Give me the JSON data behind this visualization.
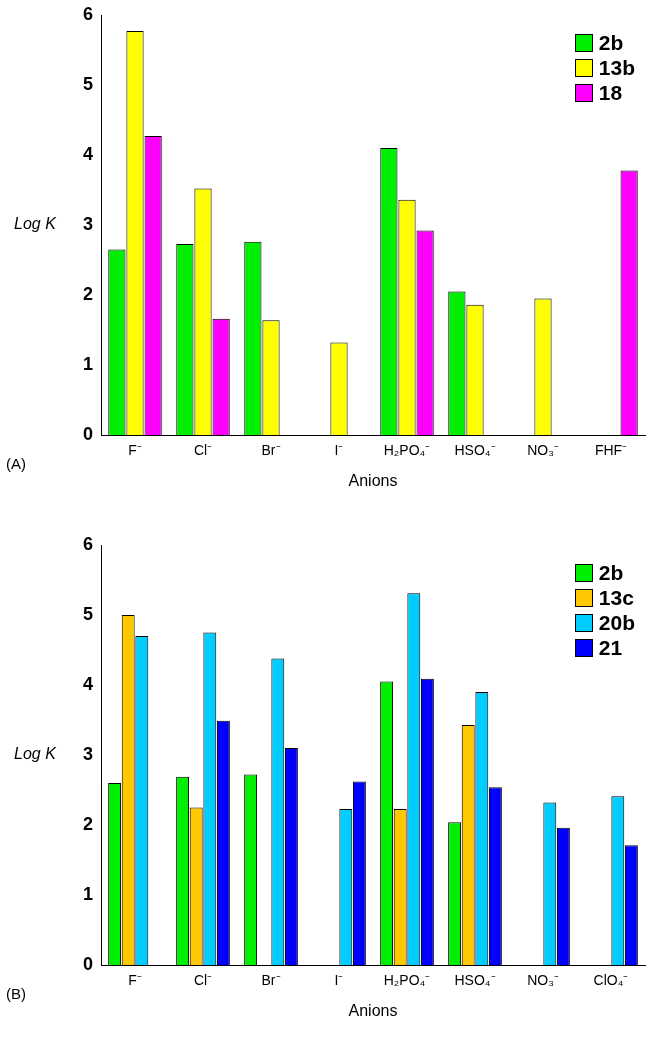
{
  "chart_data": [
    {
      "type": "bar",
      "xlabel": "Anions",
      "ylabel": "Log K",
      "categories": [
        "F⁻",
        "Cl⁻",
        "Br⁻",
        "I⁻",
        "H₂PO₄⁻",
        "HSO₄⁻",
        "NO₃⁻",
        "FHF⁻"
      ],
      "series": [
        {
          "name": "2b",
          "color": "#00ee00",
          "values": [
            2.65,
            2.73,
            2.76,
            0,
            4.1,
            2.05,
            0,
            0
          ]
        },
        {
          "name": "13b",
          "color": "#ffff00",
          "values": [
            5.77,
            3.52,
            1.64,
            1.32,
            3.36,
            1.86,
            1.95,
            0
          ]
        },
        {
          "name": "18",
          "color": "#ff00ff",
          "values": [
            4.27,
            1.66,
            0,
            0,
            2.92,
            0,
            0,
            3.78
          ]
        }
      ],
      "ylim": [
        0,
        6
      ],
      "yticks": [
        0,
        1,
        2,
        3,
        4,
        5,
        6
      ],
      "grid": false,
      "legend": "top right",
      "annotations": [
        "(A)"
      ]
    },
    {
      "type": "bar",
      "xlabel": "Anions",
      "ylabel": "Log K",
      "categories": [
        "F⁻",
        "Cl⁻",
        "Br⁻",
        "I⁻",
        "H₂PO₄⁻",
        "HSO₄⁻",
        "NO₃⁻",
        "ClO₄⁻"
      ],
      "series": [
        {
          "name": "2b",
          "color": "#00ee00",
          "values": [
            2.6,
            2.69,
            2.72,
            0,
            4.05,
            2.04,
            0,
            0
          ]
        },
        {
          "name": "13c",
          "color": "#ffc800",
          "values": [
            5.0,
            2.25,
            0,
            0,
            2.23,
            3.43,
            0,
            0
          ]
        },
        {
          "name": "20b",
          "color": "#00ccff",
          "values": [
            4.7,
            4.75,
            4.38,
            2.23,
            5.31,
            3.9,
            2.32,
            2.41
          ]
        },
        {
          "name": "21",
          "color": "#0000ff",
          "values": [
            0,
            3.49,
            3.1,
            2.62,
            4.09,
            2.54,
            1.96,
            1.71
          ]
        }
      ],
      "ylim": [
        0,
        6
      ],
      "yticks": [
        0,
        1,
        2,
        3,
        4,
        5,
        6
      ],
      "grid": false,
      "legend": "top right",
      "annotations": [
        "(B)"
      ]
    }
  ]
}
